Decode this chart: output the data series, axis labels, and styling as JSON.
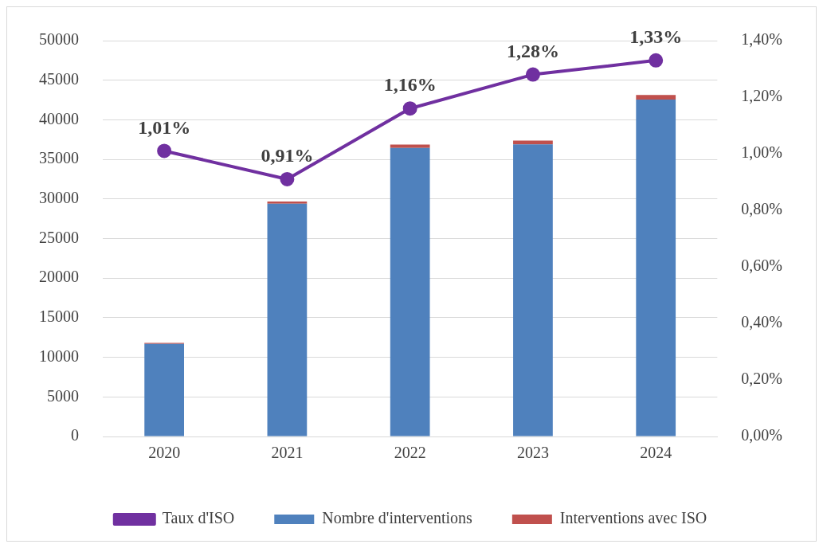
{
  "chart_data": {
    "type": "bar",
    "categories": [
      "2020",
      "2021",
      "2022",
      "2023",
      "2024"
    ],
    "stacked": true,
    "series": [
      {
        "name": "Nombre d'interventions",
        "color": "#4f81bd",
        "values": [
          11700,
          29400,
          36450,
          36900,
          42560
        ]
      },
      {
        "name": "Interventions avec ISO",
        "color": "#c0504d",
        "values": [
          120,
          270,
          425,
          475,
          570
        ]
      },
      {
        "name": "Taux d'ISO",
        "type": "line",
        "axis": "y2",
        "color": "#7030a0",
        "values": [
          1.01,
          0.91,
          1.16,
          1.28,
          1.33
        ],
        "value_labels": [
          "1,01%",
          "0,91%",
          "1,16%",
          "1,28%",
          "1,33%"
        ]
      }
    ],
    "ylim": [
      0,
      50000
    ],
    "yticks": [
      0,
      5000,
      10000,
      15000,
      20000,
      25000,
      30000,
      35000,
      40000,
      45000,
      50000
    ],
    "y2lim": [
      0,
      1.4
    ],
    "y2ticks": [
      {
        "value": 0,
        "label": "0,00%"
      },
      {
        "value": 0.2,
        "label": "0,20%"
      },
      {
        "value": 0.4,
        "label": "0,40%"
      },
      {
        "value": 0.6,
        "label": "0,60%"
      },
      {
        "value": 0.8,
        "label": "0,80%"
      },
      {
        "value": 1.0,
        "label": "1,00%"
      },
      {
        "value": 1.2,
        "label": "1,20%"
      },
      {
        "value": 1.4,
        "label": "1,40%"
      }
    ],
    "grid": "y",
    "legend": "bottom",
    "marker": "circle",
    "line_style": "solid"
  }
}
